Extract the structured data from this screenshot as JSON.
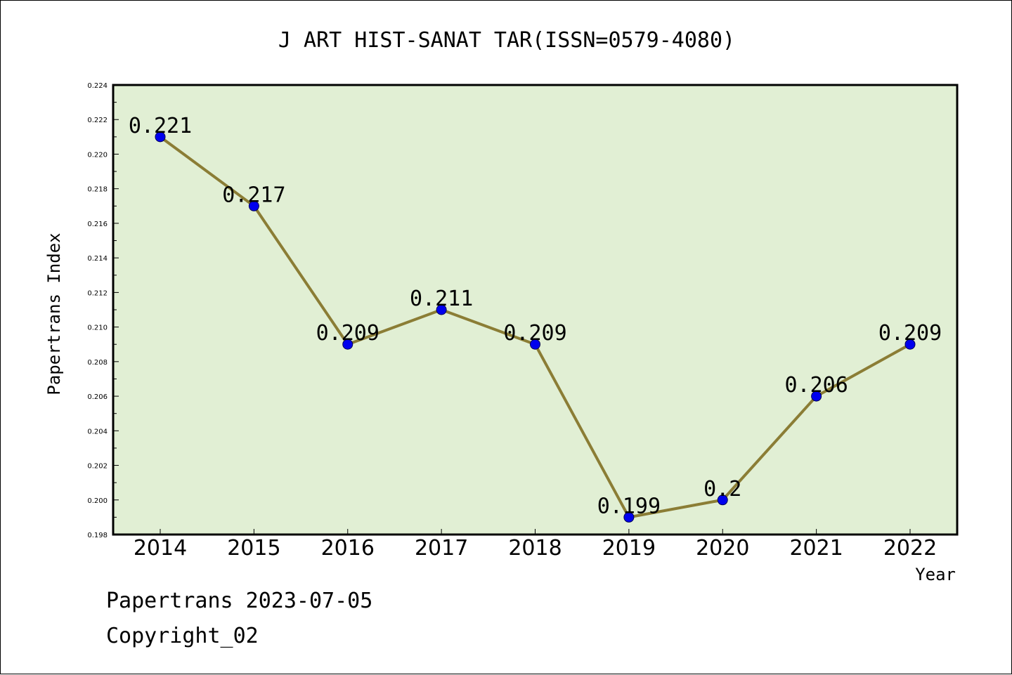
{
  "footer": {
    "source_line": "Papertrans 2023-07-05",
    "copyright_line": "Copyright_02"
  },
  "chart_data": {
    "type": "line",
    "title": "J ART HIST-SANAT TAR(ISSN=0579-4080)",
    "xlabel": "Year",
    "ylabel": "Papertrans Index",
    "categories": [
      "2014",
      "2015",
      "2016",
      "2017",
      "2018",
      "2019",
      "2020",
      "2021",
      "2022"
    ],
    "series": [
      {
        "values": [
          0.221,
          0.217,
          0.209,
          0.211,
          0.209,
          0.199,
          0.2,
          0.206,
          0.209
        ],
        "labels": [
          "0.221",
          "0.217",
          "0.209",
          "0.211",
          "0.209",
          "0.199",
          "0.2",
          "0.206",
          "0.209"
        ]
      }
    ],
    "ylim": [
      0.198,
      0.224
    ],
    "yticks": [
      "0.198",
      "0.200",
      "0.202",
      "0.204",
      "0.206",
      "0.208",
      "0.210",
      "0.212",
      "0.214",
      "0.216",
      "0.218",
      "0.220",
      "0.222",
      "0.224"
    ],
    "grid": false,
    "legend": "none",
    "colors": {
      "plot_background": "#e1efd4",
      "line": "#8b7d35",
      "marker": "#0000ee"
    }
  }
}
